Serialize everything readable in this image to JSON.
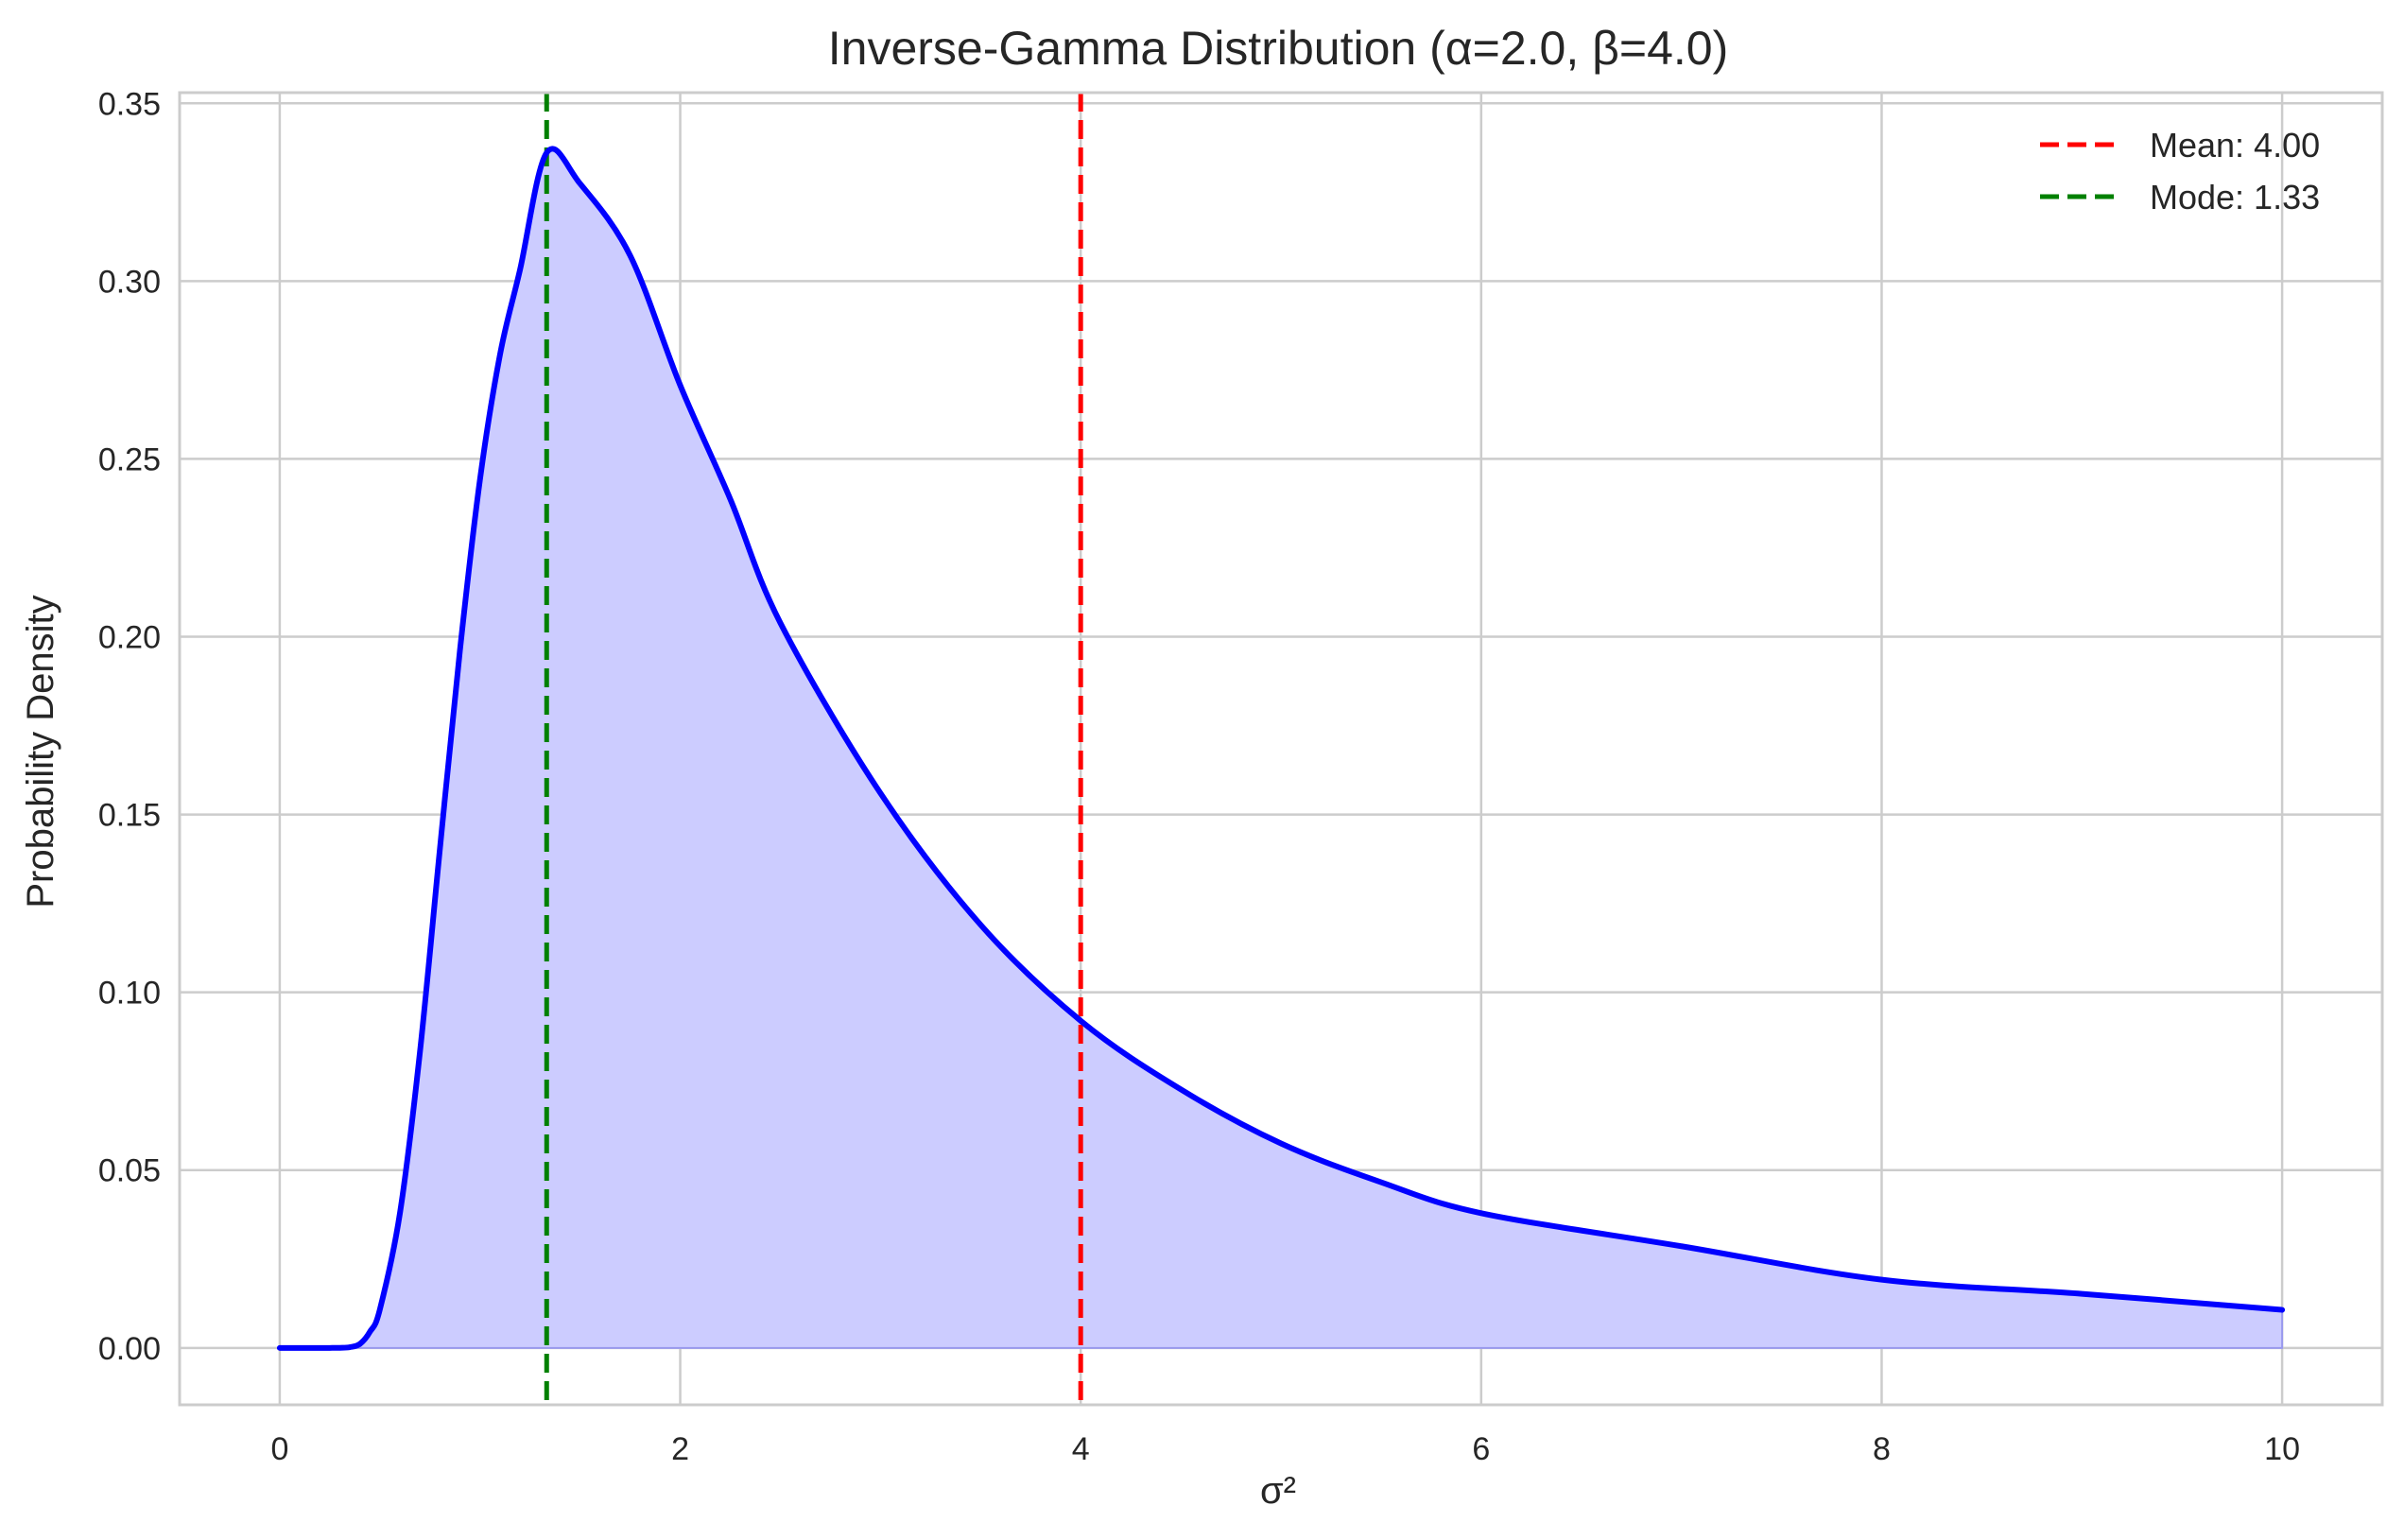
{
  "chart_data": {
    "type": "line",
    "title": "Inverse-Gamma Distribution (α=2.0, β=4.0)",
    "xlabel": "σ²",
    "ylabel": "Probability Density",
    "xlim": [
      -0.5,
      10.5
    ],
    "ylim": [
      -0.016,
      0.353
    ],
    "x_ticks": [
      0,
      2,
      4,
      6,
      8,
      10
    ],
    "y_ticks": [
      0.0,
      0.05,
      0.1,
      0.15,
      0.2,
      0.25,
      0.3,
      0.35
    ],
    "x_tick_labels": [
      "0",
      "2",
      "4",
      "6",
      "8",
      "10"
    ],
    "y_tick_labels": [
      "0.00",
      "0.05",
      "0.10",
      "0.15",
      "0.20",
      "0.25",
      "0.30",
      "0.35"
    ],
    "grid": true,
    "legend_position": "top-right",
    "series": [
      {
        "name": "",
        "kind": "line-filled",
        "color": "#0000ff",
        "fill_color": "#ccccff",
        "x": [
          0,
          0.1,
          0.2,
          0.25,
          0.3,
          0.35,
          0.4,
          0.45,
          0.5,
          0.6,
          0.7,
          0.8,
          0.9,
          1.0,
          1.1,
          1.2,
          1.333,
          1.5,
          1.75,
          2.0,
          2.25,
          2.5,
          3.0,
          3.5,
          4.0,
          4.5,
          5.0,
          5.5,
          6.0,
          7.0,
          8.0,
          9.0,
          10.0
        ],
        "y": [
          0,
          0,
          3e-10,
          1.3e-07,
          3e-05,
          0.0002,
          0.0011,
          0.0045,
          0.0108,
          0.0378,
          0.0831,
          0.1404,
          0.1962,
          0.2442,
          0.2793,
          0.3032,
          0.3361,
          0.3274,
          0.3072,
          0.2707,
          0.2387,
          0.2039,
          0.156,
          0.119,
          0.092,
          0.0727,
          0.0575,
          0.0466,
          0.0379,
          0.0286,
          0.0192,
          0.0152,
          0.0107
        ]
      }
    ],
    "vlines": [
      {
        "name": "Mean: 4.00",
        "x": 4.0,
        "color": "#ff0000"
      },
      {
        "name": "Mode: 1.33",
        "x": 1.333,
        "color": "#008000"
      }
    ]
  }
}
